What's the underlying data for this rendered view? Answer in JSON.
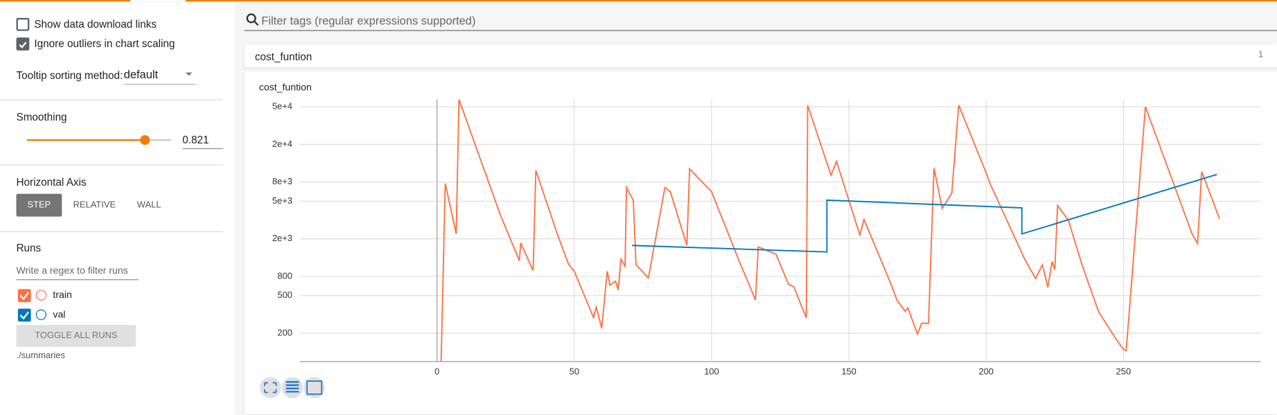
{
  "sidebar": {
    "show_download": "Show data download links",
    "ignore_outliers": "Ignore outliers in chart scaling",
    "tooltip_label": "Tooltip sorting method:",
    "tooltip_value": "default",
    "smoothing_label": "Smoothing",
    "smoothing_value": 0.821,
    "horizontal_axis_label": "Horizontal Axis",
    "axis_options": [
      "STEP",
      "RELATIVE",
      "WALL"
    ],
    "runs_label": "Runs",
    "runs_filter_placeholder": "Write a regex to filter runs",
    "toggle_all": "TOGGLE ALL RUNS",
    "logdir": "./summaries"
  },
  "filter_placeholder": "Filter tags (regular expressions supported)",
  "card": {
    "tag": "cost_funtion",
    "count": 1
  },
  "chart_data": {
    "type": "line",
    "title": "cost_funtion",
    "log_y": true,
    "grid": true,
    "xlim": [
      -50,
      300
    ],
    "ylim": [
      100,
      60000
    ],
    "xticks": [
      0,
      50,
      100,
      150,
      200,
      250
    ],
    "yticks": [
      200,
      500,
      800,
      {
        "value": 2000,
        "label": "2e+3"
      },
      {
        "value": 5000,
        "label": "5e+3"
      },
      {
        "value": 8000,
        "label": "8e+3"
      },
      {
        "value": 20000,
        "label": "2e+4"
      },
      {
        "value": 50000,
        "label": "5e+4"
      }
    ],
    "series": [
      {
        "name": "train",
        "color": "#ff7043",
        "x": [
          1.5,
          3,
          7,
          8,
          23,
          30,
          30.5,
          35,
          36,
          44,
          48,
          50,
          57,
          58,
          60,
          62,
          63,
          65,
          66,
          67,
          68.5,
          69,
          71.5,
          72.5,
          77,
          83,
          85,
          91,
          92,
          100,
          110,
          116,
          117,
          123.5,
          128,
          130,
          133,
          134.5,
          135,
          143.5,
          145.5,
          154,
          155.5,
          165,
          167.5,
          170.5,
          171.5,
          175,
          176.5,
          179,
          181,
          184,
          187.5,
          190,
          200,
          201.5,
          214,
          218,
          220.5,
          222.5,
          224,
          225,
          226,
          230,
          235,
          241,
          247.5,
          250,
          251,
          258,
          275,
          277,
          278.5,
          285
        ],
        "values": [
          100,
          7700,
          2250,
          60000,
          3630,
          1170,
          1810,
          922,
          10600,
          2165,
          1060,
          907,
          292,
          378,
          225,
          907,
          644,
          711,
          573,
          1220,
          1020,
          6980,
          5130,
          1060,
          770,
          6980,
          6300,
          1700,
          11000,
          6300,
          1170,
          450,
          1640,
          1370,
          660,
          620,
          370,
          290,
          52000,
          9400,
          13200,
          2200,
          3200,
          700,
          450,
          340,
          370,
          196,
          254,
          254,
          11200,
          4200,
          6100,
          52000,
          10000,
          7600,
          1220,
          760,
          1060,
          610,
          1150,
          940,
          4500,
          3120,
          1040,
          335,
          170,
          135,
          130,
          50000,
          2250,
          1780,
          10300,
          3250
        ]
      },
      {
        "name": "val",
        "color": "#0077bb",
        "x": [
          71,
          142,
          142,
          213,
          213,
          284
        ],
        "values": [
          1700,
          1450,
          5130,
          4250,
          2250,
          9600
        ]
      }
    ]
  }
}
